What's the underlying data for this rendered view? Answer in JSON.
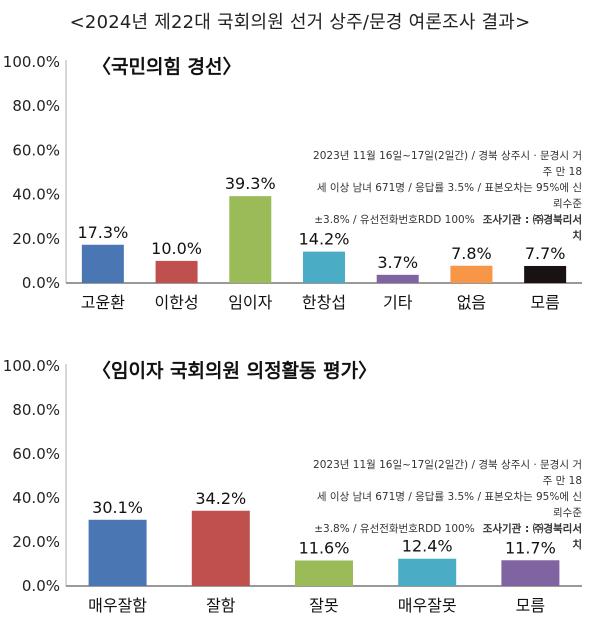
{
  "title": "<2024년 제22대 국회의원 선거 상주/문경 여론조사 결과>",
  "chart_data": [
    {
      "type": "bar",
      "title": "〈국민의힘 경선〉",
      "categories": [
        "고윤환",
        "이한성",
        "임이자",
        "한창섭",
        "기타",
        "없음",
        "모름"
      ],
      "values": [
        17.3,
        10.0,
        39.3,
        14.2,
        3.7,
        7.8,
        7.7
      ],
      "value_labels": [
        "17.3%",
        "10.0%",
        "39.3%",
        "14.2%",
        "3.7%",
        "7.8%",
        "7.7%"
      ],
      "colors": [
        "#4a77b4",
        "#c0504d",
        "#9bbb59",
        "#4bacc6",
        "#8064a2",
        "#f79646",
        "#1a1212"
      ],
      "ylim": [
        0,
        100
      ],
      "yticks": [
        "0.0%",
        "20.0%",
        "40.0%",
        "60.0%",
        "80.0%",
        "100.0%"
      ],
      "grid": false,
      "note": {
        "line1": "2023년 11월 16일~17일(2일간) / 경북 상주시 · 문경시 거주 만 18",
        "line2": "세 이상 남녀 671명 / 응답률 3.5% / 표본오차는 95%에 신뢰수준",
        "line3": "±3.8% / 유선전화번호RDD 100%",
        "agency": "조사기관 : ㈜경북리서치"
      }
    },
    {
      "type": "bar",
      "title": "〈임이자 국회의원 의정활동 평가〉",
      "categories": [
        "매우잘함",
        "잘함",
        "잘못",
        "매우잘못",
        "모름"
      ],
      "values": [
        30.1,
        34.2,
        11.6,
        12.4,
        11.7
      ],
      "value_labels": [
        "30.1%",
        "34.2%",
        "11.6%",
        "12.4%",
        "11.7%"
      ],
      "colors": [
        "#4a77b4",
        "#c0504d",
        "#9bbb59",
        "#4bacc6",
        "#8064a2"
      ],
      "ylim": [
        0,
        100
      ],
      "yticks": [
        "0.0%",
        "20.0%",
        "40.0%",
        "60.0%",
        "80.0%",
        "100.0%"
      ],
      "grid": false,
      "note": {
        "line1": "2023년 11월 16일~17일(2일간) / 경북 상주시 · 문경시 거주 만 18",
        "line2": "세 이상 남녀 671명 / 응답률 3.5% / 표본오차는 95%에 신뢰수준",
        "line3": "±3.8% / 유선전화번호RDD 100%",
        "agency": "조사기관 : ㈜경북리서치"
      }
    }
  ]
}
